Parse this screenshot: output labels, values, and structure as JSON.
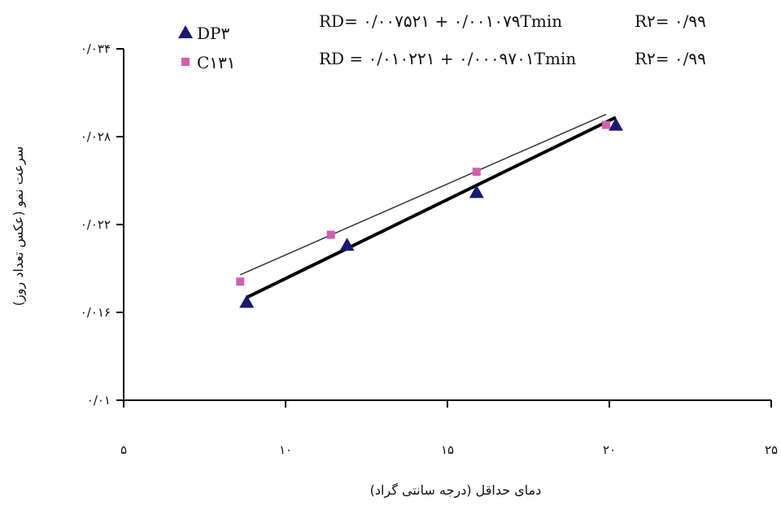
{
  "chart_data": {
    "type": "scatter",
    "xlabel": "دمای حداقل (درجه سانتی گراد)",
    "ylabel": "سرعت نمو (عکس تعداد روز)",
    "xlim": [
      5,
      25
    ],
    "ylim": [
      0.01,
      0.034
    ],
    "x_ticks": [
      5,
      10,
      15,
      20,
      25
    ],
    "x_tick_labels": [
      "۵",
      "۱۰",
      "۱۵",
      "۲۰",
      "۲۵"
    ],
    "y_ticks": [
      0.01,
      0.016,
      0.022,
      0.028,
      0.034
    ],
    "y_tick_labels": [
      "۰/۰۱",
      "۰/۰۱۶",
      "۰/۰۲۲",
      "۰/۰۲۸",
      "۰/۰۳۴"
    ],
    "grid": false,
    "legend_position": "top-left",
    "series": [
      {
        "name": "DP۳",
        "marker": "triangle",
        "color": "#1a1a6e",
        "line_color": "#000000",
        "line_style": "thick",
        "points": [
          {
            "x": 8.8,
            "y": 0.0167
          },
          {
            "x": 11.9,
            "y": 0.0206
          },
          {
            "x": 15.9,
            "y": 0.0242
          },
          {
            "x": 20.2,
            "y": 0.0288
          }
        ],
        "fit": {
          "intercept": 0.007521,
          "slope": 0.001079
        },
        "equation": "RD= ۰/۰۰۷۵۲۱ + ۰/۰۰۱۰۷۹Tmin",
        "r2_label": "R۲= ۰/۹۹"
      },
      {
        "name": "C۱۳۱",
        "marker": "square",
        "color": "#d060b0",
        "line_color": "#333333",
        "line_style": "thin",
        "points": [
          {
            "x": 8.6,
            "y": 0.0181
          },
          {
            "x": 11.4,
            "y": 0.0213
          },
          {
            "x": 15.9,
            "y": 0.0256
          },
          {
            "x": 19.9,
            "y": 0.0288
          }
        ],
        "fit": {
          "intercept": 0.010221,
          "slope": 0.0009701
        },
        "equation": "RD = ۰/۰۱۰۲۲۱ + ۰/۰۰۰۹۷۰۱Tmin",
        "r2_label": "R۲= ۰/۹۹"
      }
    ]
  }
}
